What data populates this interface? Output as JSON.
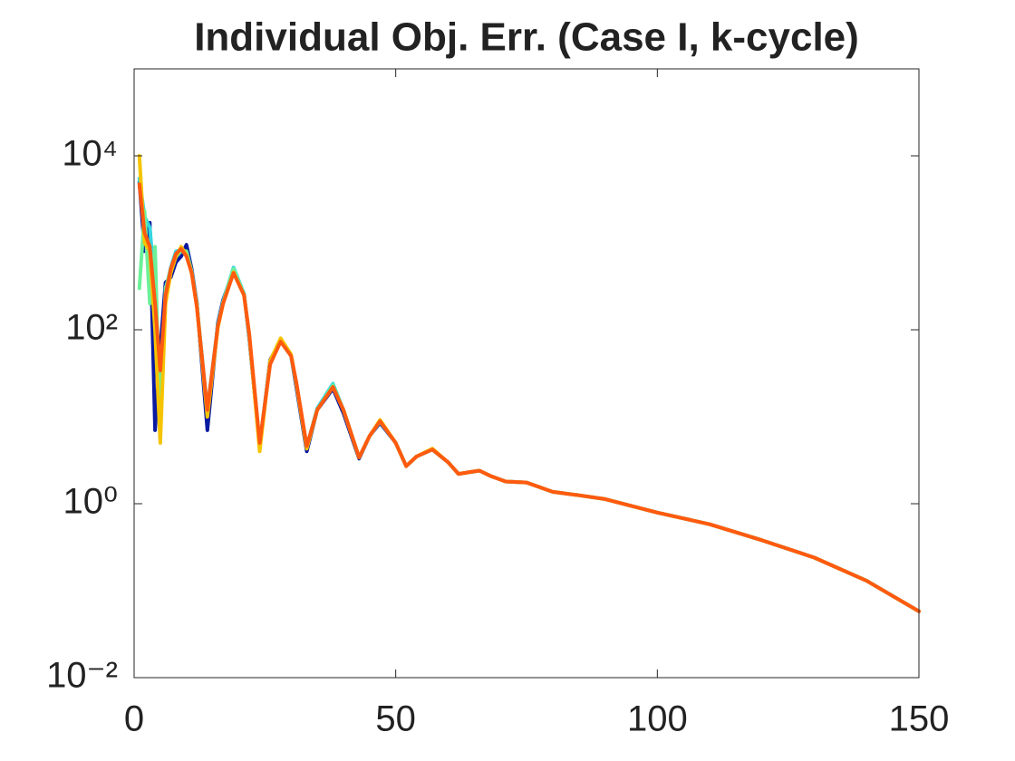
{
  "chart_data": {
    "type": "line",
    "title": "Individual Obj. Err. (Case I, k-cycle)",
    "x": [
      1,
      2,
      3,
      4,
      5,
      6,
      7,
      8,
      9,
      10,
      11,
      12,
      14,
      16,
      17,
      19,
      21,
      22,
      24,
      26,
      28,
      30,
      31,
      33,
      35,
      38,
      40,
      43,
      45,
      47,
      50,
      52,
      54,
      57,
      60,
      62,
      64,
      66,
      68,
      71,
      75,
      80,
      85,
      90,
      100,
      110,
      120,
      130,
      140,
      150
    ],
    "series": [
      {
        "color": "#0a1aa0",
        "values": [
          5000,
          800,
          1700,
          7,
          60,
          350,
          400,
          600,
          700,
          950,
          500,
          200,
          7,
          120,
          220,
          480,
          260,
          80,
          4.5,
          45,
          75,
          50,
          22,
          4,
          12,
          21,
          11,
          3.3,
          6,
          8.5,
          5,
          2.7,
          3.5,
          4.2,
          3,
          2.2,
          2.3,
          2.4,
          2.1,
          1.8,
          1.75,
          1.37,
          1.25,
          1.13,
          0.79,
          0.58,
          0.38,
          0.24,
          0.13,
          0.058
        ]
      },
      {
        "color": "#33d6e0",
        "values": [
          5500,
          2000,
          1500,
          300,
          8,
          280,
          520,
          800,
          820,
          750,
          460,
          190,
          12,
          115,
          210,
          520,
          260,
          85,
          4.8,
          42,
          75,
          50,
          24,
          4.5,
          12.5,
          24,
          12,
          3.4,
          6,
          8.9,
          5,
          2.7,
          3.5,
          4.2,
          3,
          2.2,
          2.3,
          2.4,
          2.1,
          1.8,
          1.75,
          1.37,
          1.25,
          1.13,
          0.79,
          0.58,
          0.38,
          0.24,
          0.13,
          0.058
        ]
      },
      {
        "color": "#6cf09a",
        "values": [
          300,
          2300,
          200,
          900,
          6,
          300,
          480,
          700,
          800,
          800,
          470,
          190,
          11,
          110,
          205,
          500,
          255,
          85,
          4.6,
          42,
          74,
          50,
          24,
          4.4,
          12,
          23,
          12,
          3.4,
          6,
          8.8,
          5,
          2.7,
          3.5,
          4.2,
          3,
          2.2,
          2.3,
          2.4,
          2.1,
          1.8,
          1.75,
          1.37,
          1.25,
          1.13,
          0.79,
          0.58,
          0.38,
          0.24,
          0.13,
          0.058
        ]
      },
      {
        "color": "#f5c400",
        "values": [
          10000,
          1000,
          800,
          100,
          5,
          200,
          450,
          700,
          900,
          720,
          450,
          185,
          10,
          105,
          200,
          460,
          250,
          88,
          4,
          44,
          80,
          52,
          24,
          4.3,
          12,
          22,
          12,
          3.4,
          6,
          9.2,
          5,
          2.7,
          3.5,
          4.3,
          3,
          2.2,
          2.3,
          2.4,
          2.1,
          1.8,
          1.75,
          1.37,
          1.25,
          1.13,
          0.79,
          0.58,
          0.38,
          0.24,
          0.13,
          0.058
        ]
      },
      {
        "color": "#ff5a10",
        "values": [
          4700,
          1300,
          900,
          200,
          34,
          250,
          500,
          750,
          850,
          700,
          450,
          180,
          12,
          110,
          200,
          450,
          250,
          90,
          5,
          40,
          73,
          50,
          25,
          4.6,
          12,
          22,
          12,
          3.4,
          6,
          8.9,
          5,
          2.7,
          3.5,
          4.2,
          3,
          2.2,
          2.3,
          2.4,
          2.1,
          1.8,
          1.75,
          1.37,
          1.25,
          1.13,
          0.79,
          0.58,
          0.38,
          0.24,
          0.13,
          0.058
        ]
      }
    ],
    "xlim": [
      0,
      150
    ],
    "xticks": [
      0,
      50,
      100,
      150
    ],
    "ylim": [
      0.01,
      100000
    ],
    "yscale": "log",
    "yticks": [
      {
        "value": 0.01,
        "label": "10⁻²"
      },
      {
        "value": 1,
        "label": "10⁰"
      },
      {
        "value": 100,
        "label": "10²"
      },
      {
        "value": 10000,
        "label": "10⁴"
      }
    ],
    "grid": false
  }
}
